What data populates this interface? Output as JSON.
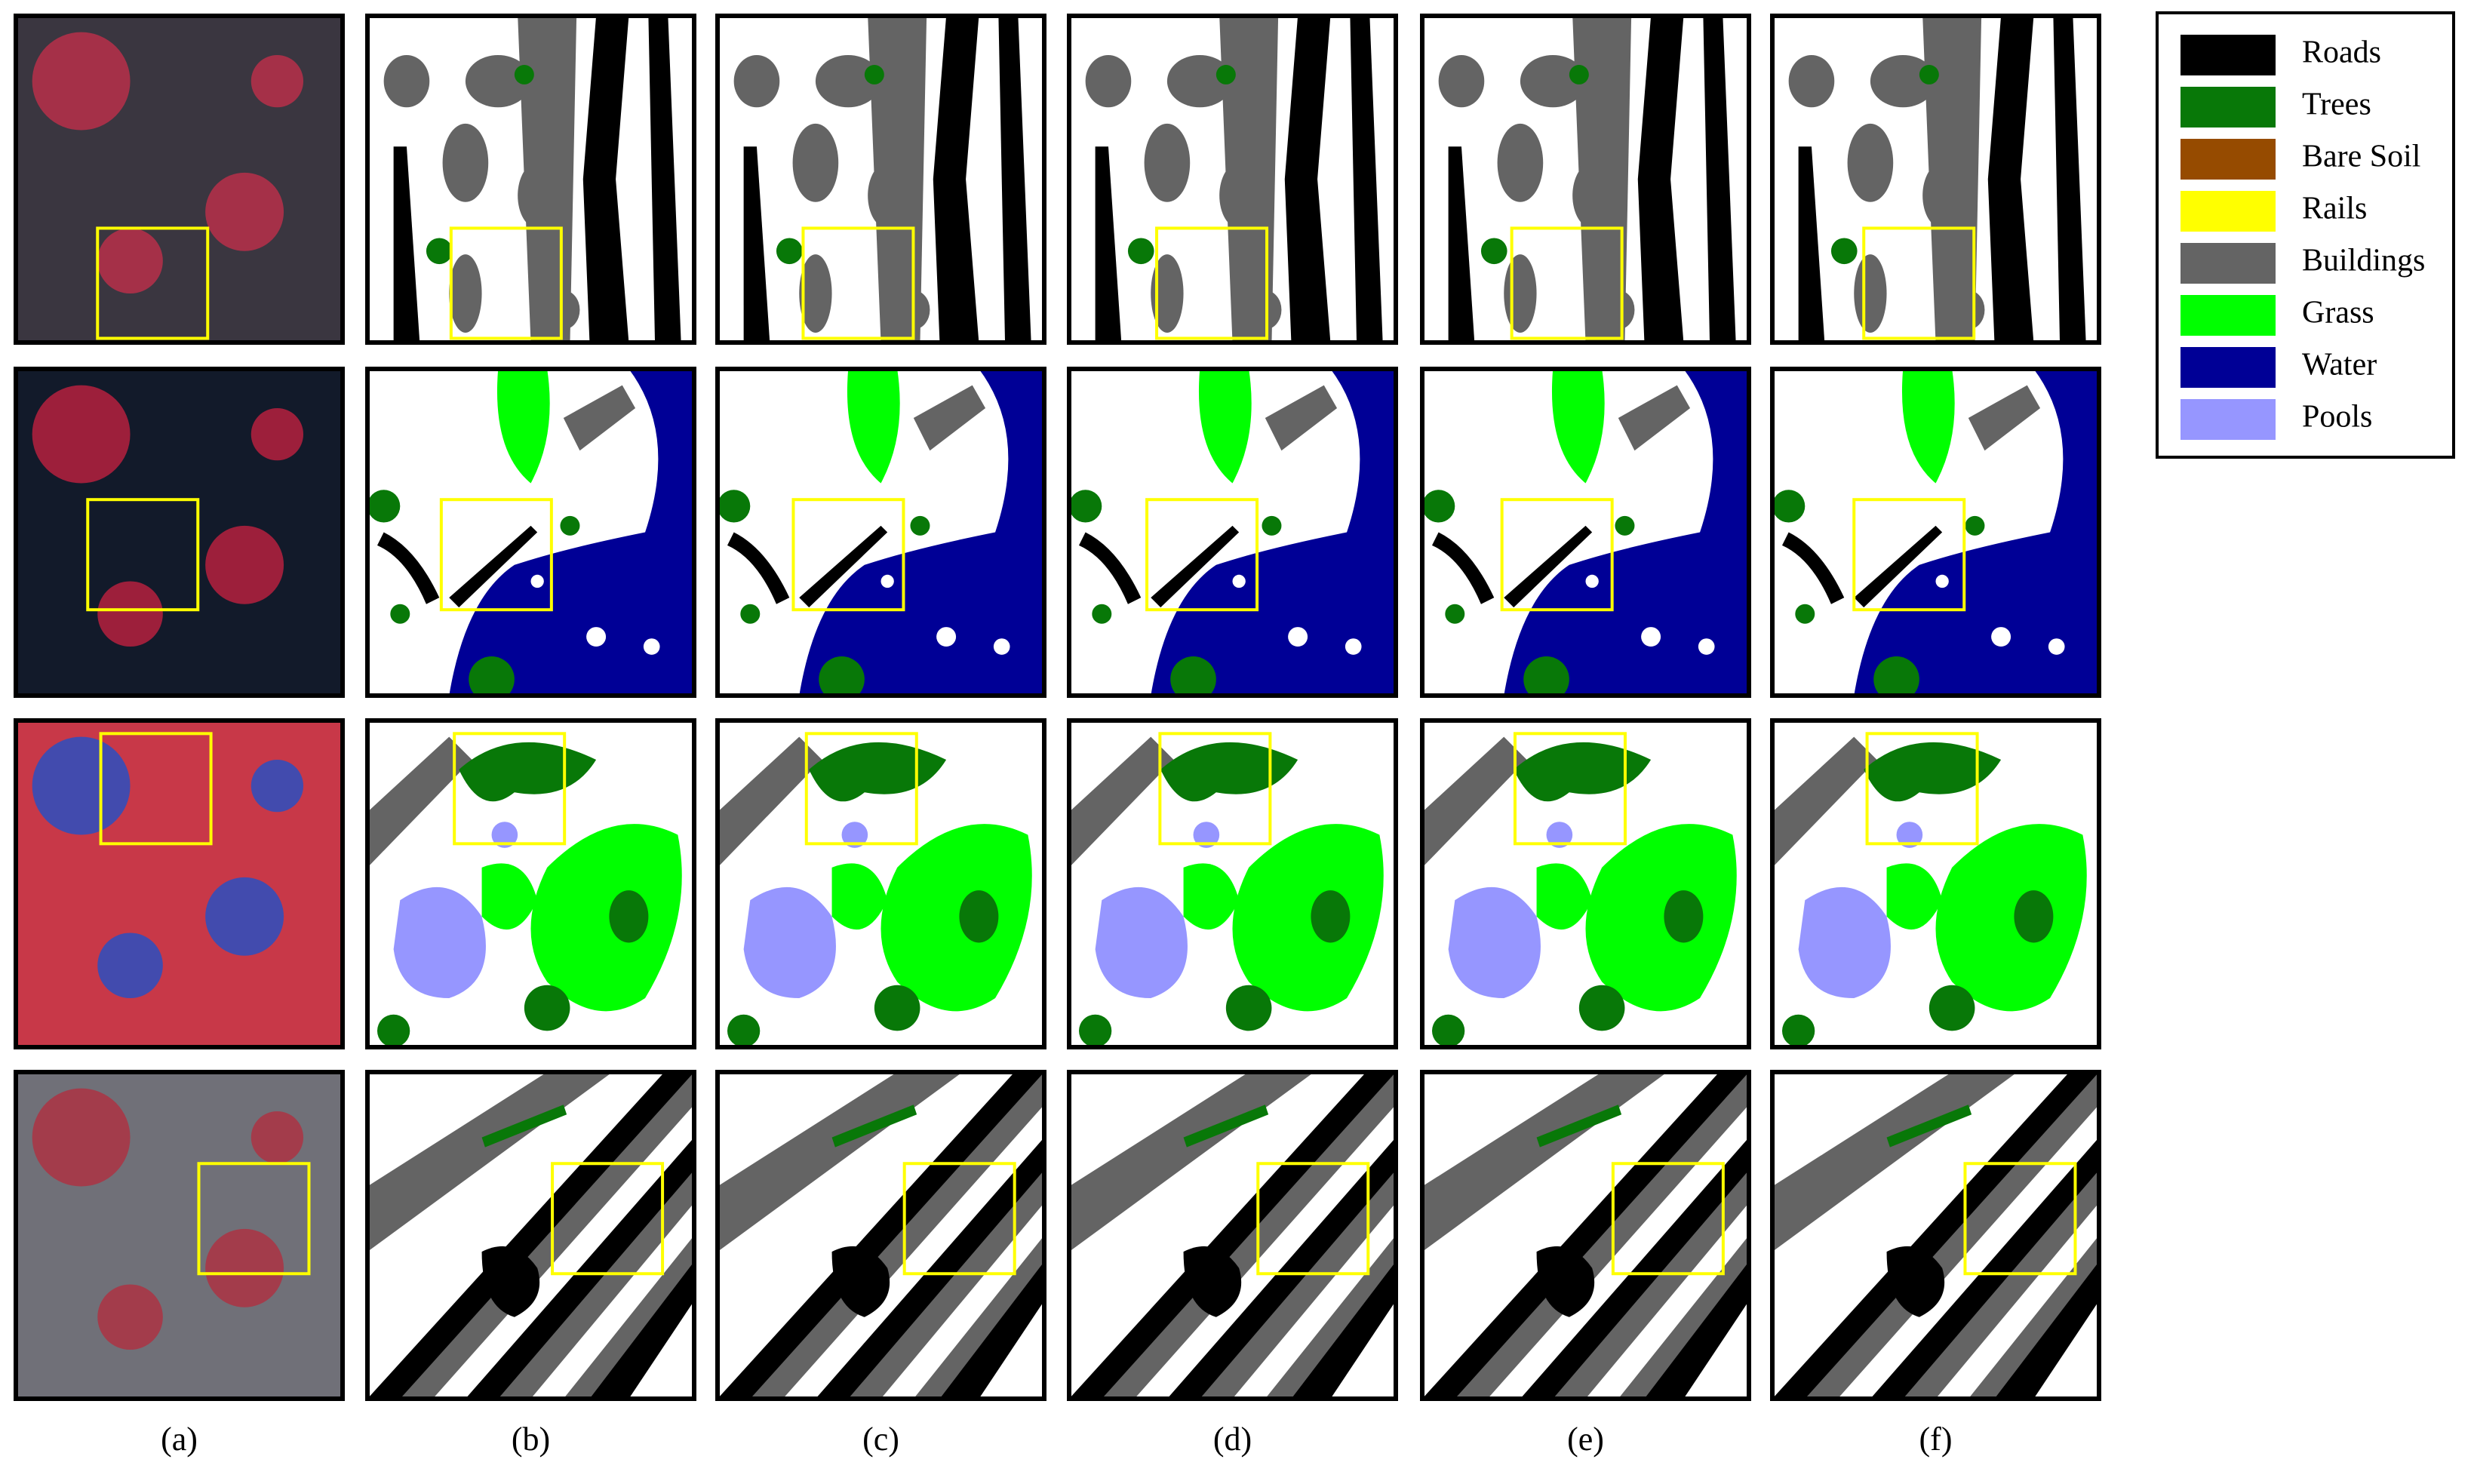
{
  "legend": {
    "items": [
      {
        "label": "Roads",
        "color": "#000000"
      },
      {
        "label": "Trees",
        "color": "#087808"
      },
      {
        "label": "Bare Soil",
        "color": "#964b00"
      },
      {
        "label": "Rails",
        "color": "#ffff00"
      },
      {
        "label": "Buildings",
        "color": "#646464"
      },
      {
        "label": "Grass",
        "color": "#00ff00"
      },
      {
        "label": "Water",
        "color": "#000096"
      },
      {
        "label": "Pools",
        "color": "#9696ff"
      }
    ]
  },
  "columns": {
    "labels": [
      "(a)",
      "(b)",
      "(c)",
      "(d)",
      "(e)",
      "(f)"
    ]
  }
}
